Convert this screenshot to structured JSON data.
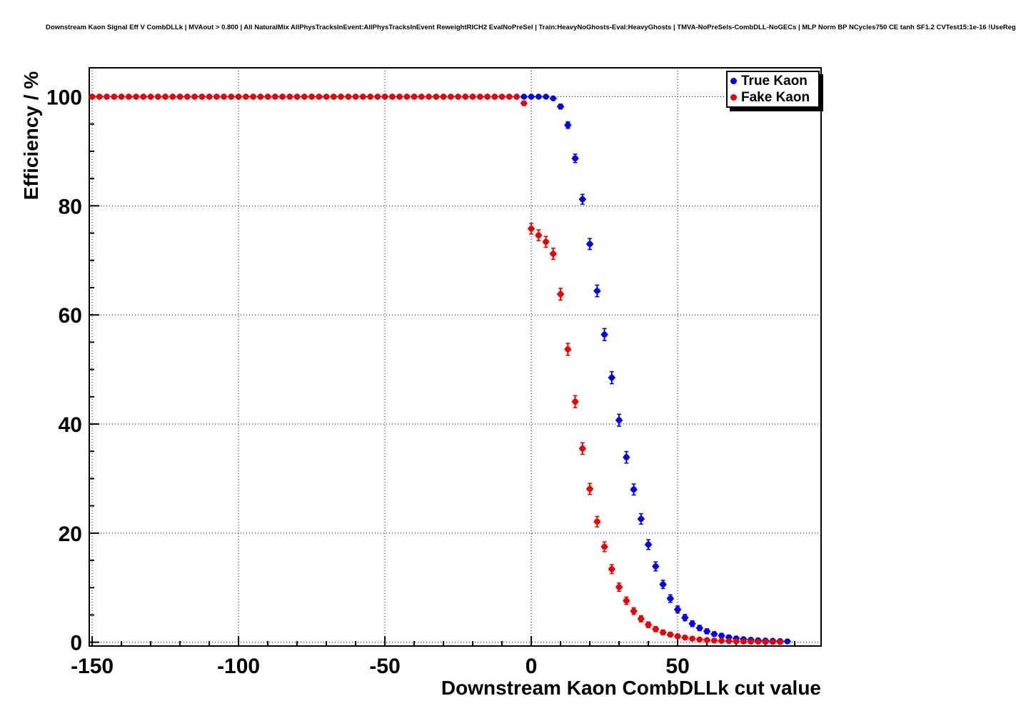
{
  "chart_data": {
    "type": "scatter",
    "title": "Downstream Kaon Signal Eff V CombDLLk | MVAout > 0.800 | All NaturalMix AllPhysTracksInEvent:AllPhysTracksInEvent ReweightRICH2 EvalNoPreSel | Train:HeavyNoGhosts-Eval:HeavyGhosts | TMVA-NoPreSels-CombDLL-NoGECs | MLP Norm BP NCycles750 CE tanh SF1.2 CVTest15:1e-16 !UseReg",
    "xlabel": "Downstream Kaon CombDLLk cut value",
    "ylabel": "Efficiency / %",
    "xlim": [
      -151,
      99
    ],
    "ylim": [
      -0.7,
      105.3
    ],
    "x_major_ticks": [
      -150,
      -100,
      -50,
      0,
      50
    ],
    "x_tick_labels": [
      "-150",
      "-100",
      "-50",
      "0",
      "50"
    ],
    "x_minor_step": 10,
    "y_major_ticks": [
      0,
      20,
      40,
      60,
      80,
      100
    ],
    "y_tick_labels": [
      "0",
      "20",
      "40",
      "60",
      "80",
      "100"
    ],
    "y_minor_step": 5,
    "grid": "dotted",
    "legend_position": "top-right",
    "error_bars": true,
    "series": [
      {
        "name": "True Kaon",
        "color": "#0000ee",
        "x": [
          -150,
          -147.5,
          -145,
          -142.5,
          -140,
          -137.5,
          -135,
          -132.5,
          -130,
          -127.5,
          -125,
          -122.5,
          -120,
          -117.5,
          -115,
          -112.5,
          -110,
          -107.5,
          -105,
          -102.5,
          -100,
          -97.5,
          -95,
          -92.5,
          -90,
          -87.5,
          -85,
          -82.5,
          -80,
          -77.5,
          -75,
          -72.5,
          -70,
          -67.5,
          -65,
          -62.5,
          -60,
          -57.5,
          -55,
          -52.5,
          -50,
          -47.5,
          -45,
          -42.5,
          -40,
          -37.5,
          -35,
          -32.5,
          -30,
          -27.5,
          -25,
          -22.5,
          -20,
          -17.5,
          -15,
          -12.5,
          -10,
          -7.5,
          -5,
          -2.5,
          0,
          2.5,
          5,
          7.5,
          10,
          12.5,
          15,
          17.5,
          20,
          22.5,
          25,
          27.5,
          30,
          32.5,
          35,
          37.5,
          40,
          42.5,
          45,
          47.5,
          50,
          52.5,
          55,
          57.5,
          60,
          62.5,
          65,
          67.5,
          70,
          72.5,
          75,
          77.5,
          80,
          82.5,
          85,
          87.5
        ],
        "y": [
          100,
          100,
          100,
          100,
          100,
          100,
          100,
          100,
          100,
          100,
          100,
          100,
          100,
          100,
          100,
          100,
          100,
          100,
          100,
          100,
          100,
          100,
          100,
          100,
          100,
          100,
          100,
          100,
          100,
          100,
          100,
          100,
          100,
          100,
          100,
          100,
          100,
          100,
          100,
          100,
          100,
          100,
          100,
          100,
          100,
          100,
          100,
          100,
          100,
          100,
          100,
          100,
          100,
          100,
          100,
          100,
          100,
          100,
          100,
          100,
          100,
          100,
          100,
          99.7,
          98.2,
          94.8,
          88.7,
          81.2,
          73.0,
          64.4,
          56.4,
          48.5,
          40.7,
          33.9,
          28.0,
          22.6,
          17.9,
          13.9,
          10.6,
          8.0,
          6.0,
          4.5,
          3.4,
          2.6,
          2.0,
          1.5,
          1.2,
          0.9,
          0.7,
          0.55,
          0.45,
          0.35,
          0.3,
          0.25,
          0.2,
          0.15
        ]
      },
      {
        "name": "Fake Kaon",
        "color": "#ee0000",
        "x": [
          -150,
          -147.5,
          -145,
          -142.5,
          -140,
          -137.5,
          -135,
          -132.5,
          -130,
          -127.5,
          -125,
          -122.5,
          -120,
          -117.5,
          -115,
          -112.5,
          -110,
          -107.5,
          -105,
          -102.5,
          -100,
          -97.5,
          -95,
          -92.5,
          -90,
          -87.5,
          -85,
          -82.5,
          -80,
          -77.5,
          -75,
          -72.5,
          -70,
          -67.5,
          -65,
          -62.5,
          -60,
          -57.5,
          -55,
          -52.5,
          -50,
          -47.5,
          -45,
          -42.5,
          -40,
          -37.5,
          -35,
          -32.5,
          -30,
          -27.5,
          -25,
          -22.5,
          -20,
          -17.5,
          -15,
          -12.5,
          -10,
          -7.5,
          -5,
          -2.5,
          0,
          2.5,
          5,
          7.5,
          10,
          12.5,
          15,
          17.5,
          20,
          22.5,
          25,
          27.5,
          30,
          32.5,
          35,
          37.5,
          40,
          42.5,
          45,
          47.5,
          50,
          52.5,
          55,
          57.5,
          60,
          62.5,
          65,
          67.5,
          70,
          72.5,
          75,
          77.5,
          80,
          82.5,
          85
        ],
        "y": [
          100,
          100,
          100,
          100,
          100,
          100,
          100,
          100,
          100,
          100,
          100,
          100,
          100,
          100,
          100,
          100,
          100,
          100,
          100,
          100,
          100,
          100,
          100,
          100,
          100,
          100,
          100,
          100,
          100,
          100,
          100,
          100,
          100,
          100,
          100,
          100,
          100,
          100,
          100,
          100,
          100,
          100,
          100,
          100,
          100,
          100,
          100,
          100,
          100,
          100,
          100,
          100,
          100,
          100,
          100,
          100,
          100,
          100,
          100,
          98.8,
          75.8,
          74.6,
          73.4,
          71.2,
          63.8,
          53.7,
          44.1,
          35.5,
          28.1,
          22.1,
          17.5,
          13.4,
          10.1,
          7.6,
          5.7,
          4.3,
          3.2,
          2.4,
          1.8,
          1.4,
          1.1,
          0.85,
          0.65,
          0.5,
          0.4,
          0.3,
          0.25,
          0.2,
          0.15,
          0.12,
          0.1,
          0.08,
          0.06,
          0.05,
          0.04
        ]
      }
    ]
  }
}
